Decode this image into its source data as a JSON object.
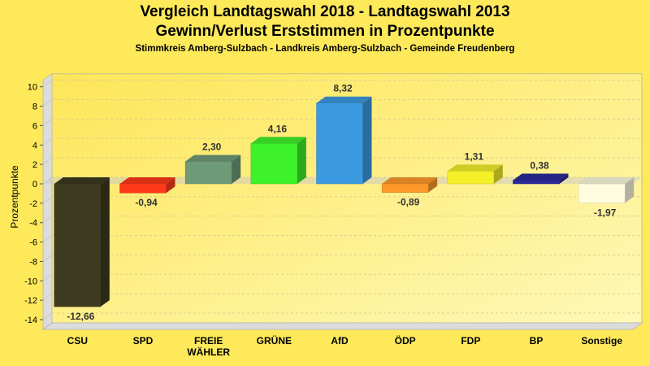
{
  "chart_data": {
    "type": "bar",
    "title": "Vergleich Landtagswahl 2018 - Landtagswahl 2013",
    "subtitle": "Gewinn/Verlust Erststimmen in Prozentpunkte",
    "caption": "Stimmkreis Amberg-Sulzbach - Landkreis Amberg-Sulzbach - Gemeinde Freudenberg",
    "xlabel": "",
    "ylabel": "Prozentpunkte",
    "ylim": [
      -15,
      11
    ],
    "yticks": [
      10,
      8,
      6,
      4,
      2,
      0,
      -2,
      -4,
      -6,
      -8,
      -10,
      -12,
      -14
    ],
    "grid": true,
    "categories": [
      "CSU",
      "SPD",
      "FREIE WÄHLER",
      "GRÜNE",
      "AfD",
      "ÖDP",
      "FDP",
      "BP",
      "Sonstige"
    ],
    "values": [
      -12.66,
      -0.94,
      2.3,
      4.16,
      8.32,
      -0.89,
      1.31,
      0.38,
      -1.97
    ],
    "labels": [
      "-12,66",
      "-0,94",
      "2,30",
      "4,16",
      "8,32",
      "-0,89",
      "1,31",
      "0,38",
      "-1,97"
    ],
    "colors": [
      "#3d3a20",
      "#ff3a1a",
      "#6e9a78",
      "#3ef22a",
      "#3c9ae0",
      "#ff9a2a",
      "#f4f02a",
      "#2a2a9a",
      "#fffde0"
    ]
  }
}
